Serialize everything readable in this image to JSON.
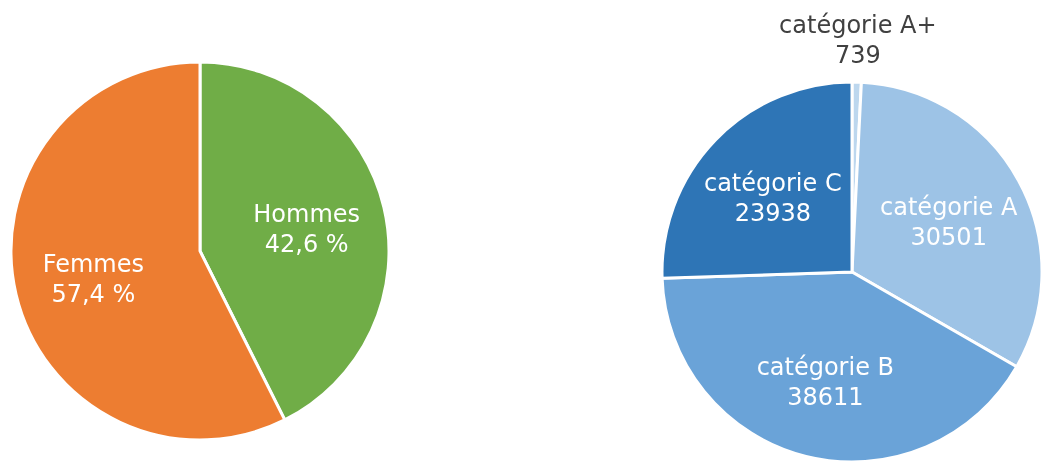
{
  "chart_data": [
    {
      "type": "pie",
      "categories": [
        "Hommes",
        "Femmes"
      ],
      "values": [
        42.6,
        57.4
      ],
      "colors": [
        "#70ad47",
        "#ed7d31"
      ],
      "value_labels": [
        "42,6 %",
        "57,4 %"
      ]
    },
    {
      "type": "pie",
      "categories": [
        "catégorie A+",
        "catégorie A",
        "catégorie B",
        "catégorie C"
      ],
      "values": [
        739,
        30501,
        38611,
        23938
      ],
      "colors": [
        "#bdd7ee",
        "#9dc3e6",
        "#6aa3d8",
        "#2e75b6"
      ],
      "data_labels": true
    }
  ]
}
